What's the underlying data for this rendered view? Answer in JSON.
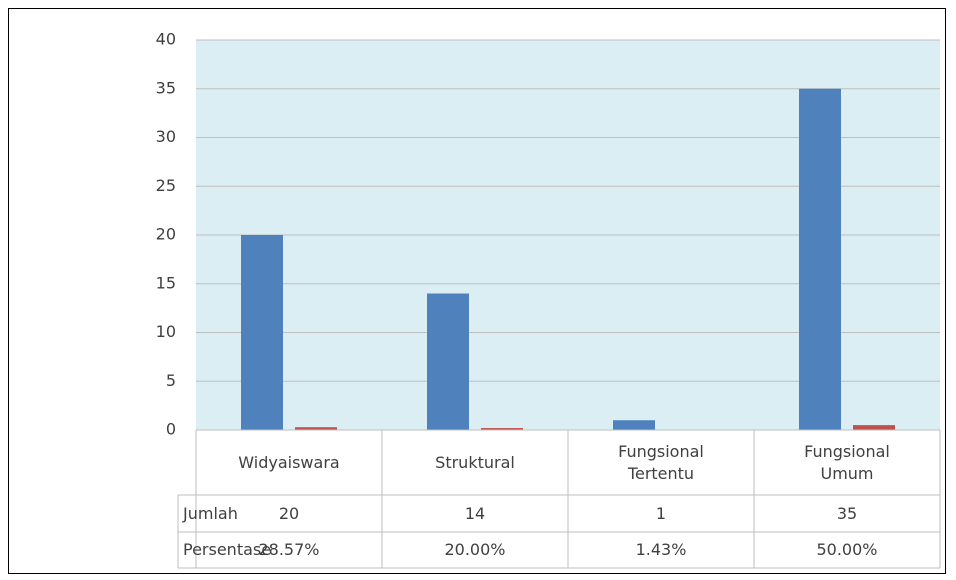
{
  "chart_data": {
    "type": "bar",
    "categories": [
      "Widyaiswara",
      "Struktural",
      "Fungsional Tertentu",
      "Fungsional Umum"
    ],
    "series": [
      {
        "name": "Jumlah",
        "color": "#4f81bd",
        "values": [
          20,
          14,
          1,
          35
        ]
      },
      {
        "name": "Persentase",
        "color": "#c0504d",
        "values": [
          0.2857,
          0.2,
          0.0143,
          0.5
        ],
        "value_labels": [
          "28.57%",
          "20.00%",
          "1.43%",
          "50.00%"
        ]
      }
    ],
    "ylim": [
      0,
      40
    ],
    "yticks": [
      0,
      5,
      10,
      15,
      20,
      25,
      30,
      35,
      40
    ],
    "grid": true,
    "plot_background": "#dbeef4"
  }
}
